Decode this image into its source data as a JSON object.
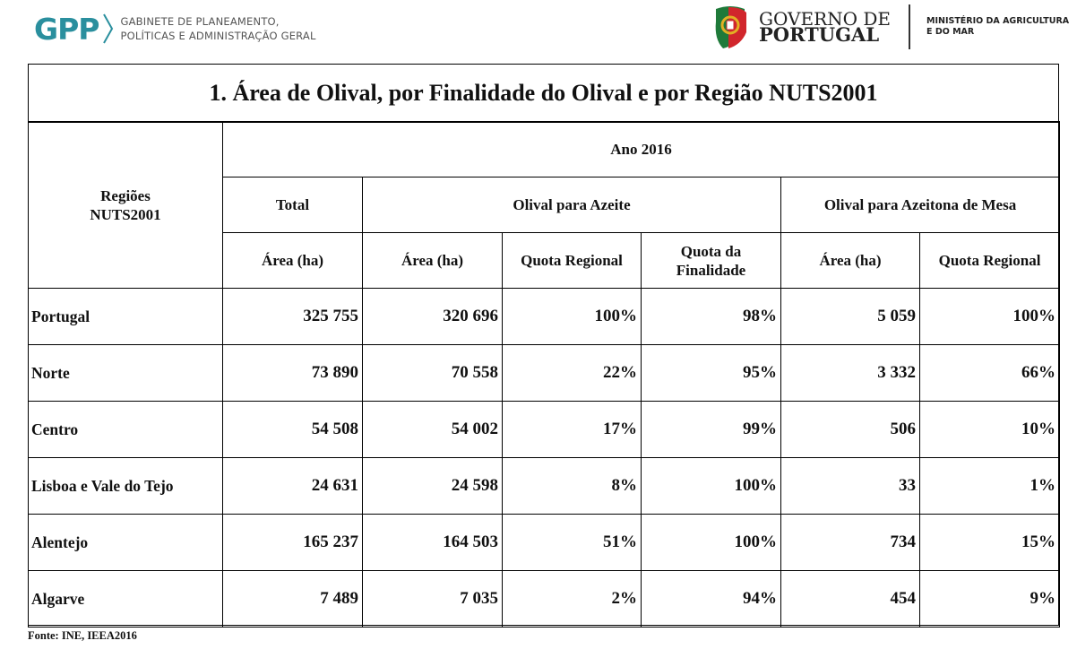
{
  "header": {
    "gpp": {
      "logo_text": "GPP",
      "line1": "GABINETE DE PLANEAMENTO,",
      "line2": "POLÍTICAS E ADMINISTRAÇÃO GERAL"
    },
    "governo": {
      "line1": "GOVERNO DE",
      "line2": "PORTUGAL"
    },
    "ministerio": {
      "line1": "MINISTÉRIO DA AGRICULTURA",
      "line2": "E DO MAR"
    }
  },
  "table": {
    "title": "1. Área de Olival, por Finalidade do Olival e por Região NUTS2001",
    "regions_header_line1": "Regiões",
    "regions_header_line2": "NUTS2001",
    "year_header": "Ano 2016",
    "group_headers": [
      "Total",
      "Olival para Azeite",
      "Olival para Azeitona de Mesa"
    ],
    "sub_headers": [
      "Área (ha)",
      "Área (ha)",
      "Quota Regional",
      "Quota da Finalidade",
      "Área (ha)",
      "Quota Regional"
    ],
    "rows": [
      {
        "region": "Portugal",
        "cells": [
          "325 755",
          "320 696",
          "100%",
          "98%",
          "5 059",
          "100%"
        ]
      },
      {
        "region": "Norte",
        "cells": [
          "73 890",
          "70 558",
          "22%",
          "95%",
          "3 332",
          "66%"
        ]
      },
      {
        "region": "Centro",
        "cells": [
          "54 508",
          "54 002",
          "17%",
          "99%",
          "506",
          "10%"
        ]
      },
      {
        "region": "Lisboa e Vale do Tejo",
        "cells": [
          "24 631",
          "24 598",
          "8%",
          "100%",
          "33",
          "1%"
        ]
      },
      {
        "region": "Alentejo",
        "cells": [
          "165 237",
          "164 503",
          "51%",
          "100%",
          "734",
          "15%"
        ]
      },
      {
        "region": "Algarve",
        "cells": [
          "7 489",
          "7 035",
          "2%",
          "94%",
          "454",
          "9%"
        ]
      }
    ]
  },
  "footer": {
    "source": "Fonte: INE, IEEA2016"
  },
  "colors": {
    "gpp_teal": "#2a8f9e",
    "shield_red": "#d1262c",
    "shield_green": "#1f7a3a",
    "shield_gold": "#e2b024"
  }
}
